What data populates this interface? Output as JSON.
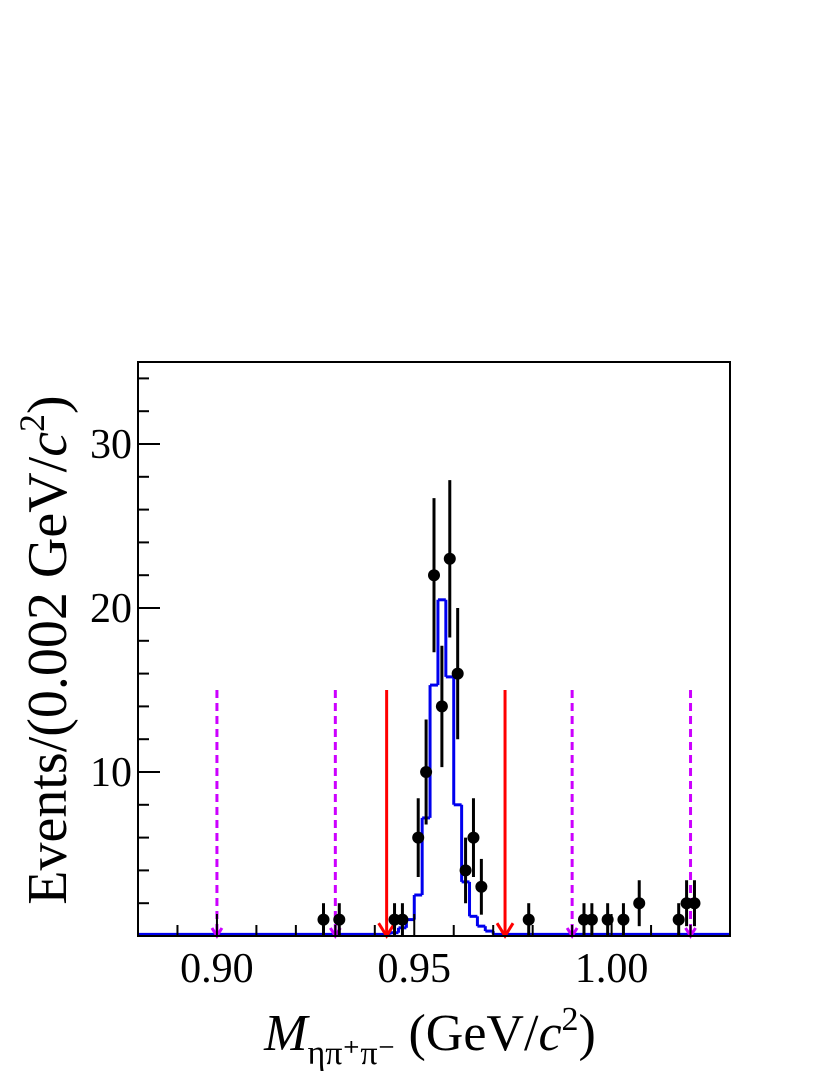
{
  "chart_data": {
    "type": "errorbar",
    "x_label": [
      "M",
      "ηπ⁺π⁻",
      " (GeV/",
      "c",
      "2",
      ")"
    ],
    "y_label": [
      "Events/(0.002 GeV/",
      "c",
      "2",
      ")"
    ],
    "x": [
      0.927,
      0.931,
      0.945,
      0.947,
      0.951,
      0.953,
      0.955,
      0.957,
      0.959,
      0.961,
      0.963,
      0.965,
      0.967,
      0.979,
      0.993,
      0.995,
      0.999,
      1.003,
      1.007,
      1.017,
      1.019,
      1.021
    ],
    "values": [
      1,
      1,
      1,
      1,
      6,
      10,
      22,
      14,
      23,
      16,
      4,
      6,
      3,
      1,
      1,
      1,
      1,
      1,
      2,
      1,
      2,
      2
    ],
    "errors": [
      1,
      1,
      1,
      1,
      2.4,
      3.2,
      4.7,
      3.7,
      4.8,
      4,
      2,
      2.4,
      1.7,
      1,
      1,
      1,
      1,
      1,
      1.4,
      1,
      1.4,
      1.4
    ],
    "color": "#000000",
    "histogram": {
      "color": "#0000ee",
      "bins": [
        0.88,
        0.944,
        0.946,
        0.948,
        0.95,
        0.952,
        0.954,
        0.956,
        0.958,
        0.96,
        0.962,
        0.964,
        0.966,
        0.968,
        0.97,
        1.03
      ],
      "counts": [
        0.1,
        0.2,
        0.5,
        1.0,
        2.5,
        7.2,
        15.3,
        20.5,
        15.8,
        8.0,
        3.3,
        1.2,
        0.6,
        0.3,
        0.1
      ]
    },
    "arrows": [
      {
        "x": 0.9,
        "y": 15,
        "color": "#cc00ff",
        "style": "dashed"
      },
      {
        "x": 0.93,
        "y": 15,
        "color": "#cc00ff",
        "style": "dashed"
      },
      {
        "x": 0.943,
        "y": 15,
        "color": "#ff0000",
        "style": "solid"
      },
      {
        "x": 0.973,
        "y": 15,
        "color": "#ff0000",
        "style": "solid"
      },
      {
        "x": 0.99,
        "y": 15,
        "color": "#cc00ff",
        "style": "dashed"
      },
      {
        "x": 1.02,
        "y": 15,
        "color": "#cc00ff",
        "style": "dashed"
      }
    ],
    "xlim": [
      0.88,
      1.03
    ],
    "ylim": [
      0,
      35
    ],
    "xticks": [
      {
        "value": 0.9,
        "label": "0.90"
      },
      {
        "value": 0.95,
        "label": "0.95"
      },
      {
        "value": 1.0,
        "label": "1.00"
      }
    ],
    "xminor_ticks": [
      0.89,
      0.91,
      0.92,
      0.93,
      0.94,
      0.96,
      0.97,
      0.98,
      0.99,
      1.01,
      1.02
    ],
    "yticks": [
      10,
      20,
      30
    ],
    "yminor_ticks": [
      2,
      4,
      6,
      8,
      12,
      14,
      16,
      18,
      22,
      24,
      26,
      28,
      32,
      34
    ]
  }
}
